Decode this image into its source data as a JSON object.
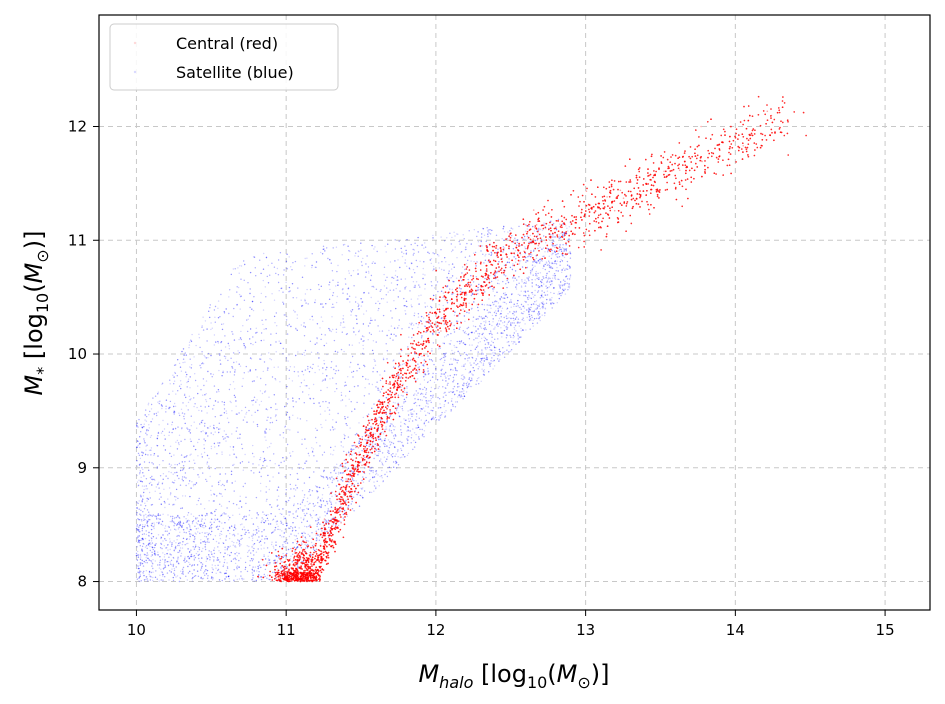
{
  "chart_data": {
    "type": "scatter",
    "xlabel": "M_halo [log10(M_sun)]",
    "ylabel": "M_* [log10(M_sun)]",
    "xlim": [
      9.75,
      15.3
    ],
    "ylim": [
      7.75,
      12.98
    ],
    "xticks": [
      10,
      11,
      12,
      13,
      14,
      15
    ],
    "yticks": [
      8,
      9,
      10,
      11,
      12
    ],
    "xtick_labels": [
      "10",
      "11",
      "12",
      "13",
      "14",
      "15"
    ],
    "ytick_labels": [
      "8",
      "9",
      "10",
      "11",
      "12"
    ],
    "grid": true,
    "grid_style": "dashed",
    "legend_position": "upper-left",
    "series": [
      {
        "name": "Central (red)",
        "color": "#ff0000",
        "description_points": [
          [
            11.0,
            8.0
          ],
          [
            11.2,
            8.1
          ],
          [
            11.4,
            8.8
          ],
          [
            11.6,
            9.4
          ],
          [
            11.8,
            9.85
          ],
          [
            12.0,
            10.3
          ],
          [
            12.3,
            10.7
          ],
          [
            12.6,
            11.0
          ],
          [
            13.0,
            11.2
          ],
          [
            13.5,
            11.55
          ],
          [
            14.0,
            11.85
          ],
          [
            14.3,
            12.05
          ]
        ]
      },
      {
        "name": "Satellite (blue)",
        "color": "#0000ff",
        "description_points": [
          [
            10.0,
            8.0
          ],
          [
            10.0,
            9.6
          ],
          [
            10.3,
            10.0
          ],
          [
            10.6,
            10.3
          ],
          [
            11.0,
            10.6
          ],
          [
            11.0,
            8.6
          ],
          [
            11.3,
            9.8
          ],
          [
            11.5,
            10.6
          ],
          [
            11.8,
            10.9
          ],
          [
            12.2,
            10.4
          ],
          [
            12.5,
            11.2
          ],
          [
            12.9,
            11.0
          ]
        ]
      }
    ]
  }
}
